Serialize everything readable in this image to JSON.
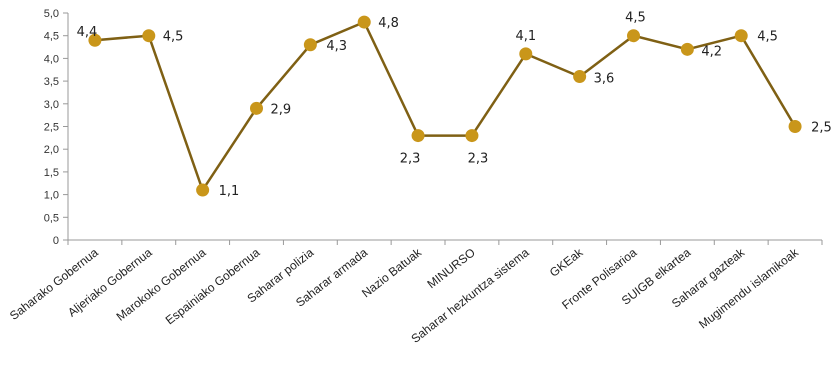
{
  "chart_data": {
    "type": "line",
    "categories": [
      "Saharako Gobernua",
      "Aljeriako Gobernua",
      "Marokoko Gobernua",
      "Espainiako Gobernua",
      "Saharar polizia",
      "Saharar armada",
      "Nazio Batuak",
      "MINURSO",
      "Saharar hezkuntza sistema",
      "GKEak",
      "Fronte Polisarioa",
      "SUIGB elkartea",
      "Saharar gazteak",
      "Mugimendu islamikoak"
    ],
    "values": [
      4.4,
      4.5,
      1.1,
      2.9,
      4.3,
      4.8,
      2.3,
      2.3,
      4.1,
      3.6,
      4.5,
      4.2,
      4.5,
      2.5
    ],
    "value_labels": [
      "4,4",
      "4,5",
      "1,1",
      "2,9",
      "4,3",
      "4,8",
      "2,3",
      "2,3",
      "4,1",
      "3,6",
      "4,5",
      "4,2",
      "4,5",
      "2,5"
    ],
    "y_ticks": [
      "0",
      "0,5",
      "1,0",
      "1,5",
      "2,0",
      "2,5",
      "3,0",
      "3,5",
      "4,0",
      "4,5",
      "5,0"
    ],
    "ylim": [
      0,
      5
    ],
    "title": "",
    "xlabel": "",
    "ylabel": "",
    "grid": false,
    "legend": "none",
    "colors": {
      "line": "#7f6014",
      "marker": "#c9961a",
      "axis": "#999999"
    }
  }
}
